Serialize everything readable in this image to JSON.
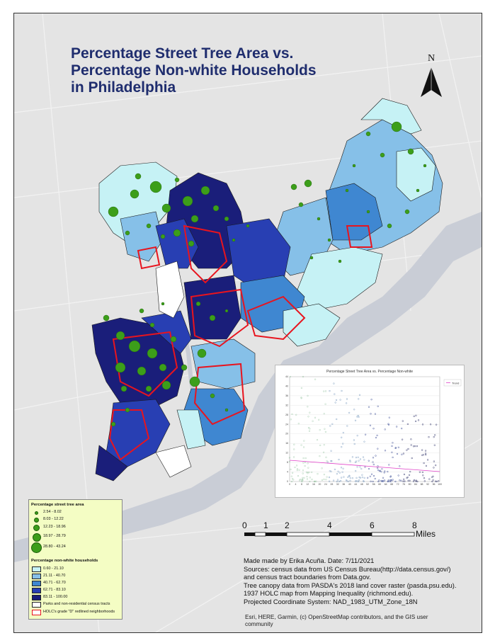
{
  "title": [
    "Percentage Street Tree Area vs.",
    "Percentage Non-white Households",
    "in Philadelphia"
  ],
  "north_arrow": {
    "letter": "N"
  },
  "colors": {
    "frame_background": "#e4e4e4",
    "water": "#c9cdd6",
    "land": "#d8d8d8",
    "tract_fill_classes": [
      "#c6f2f5",
      "#86c0e8",
      "#3f87d1",
      "#283fb3",
      "#1a1e7a"
    ],
    "tract_border": "#1a1a1a",
    "circle_fill": "#3c9e1a",
    "holc_outline": "#e8141e",
    "parks_fill": "#ffffff",
    "legend_background": "#f4fdc4",
    "title": "#1f2d6e"
  },
  "inset_chart": {
    "title": "Percentage Street Tree Area vs. Percentage Non-white",
    "legend_label": "Trend",
    "xticks": [
      "0",
      "4",
      "8",
      "12",
      "16",
      "20",
      "24",
      "28",
      "32",
      "36",
      "40",
      "44",
      "48",
      "52",
      "56",
      "60",
      "64",
      "68",
      "72",
      "76",
      "80",
      "84",
      "88",
      "92",
      "96",
      "100"
    ],
    "yticks": [
      "0",
      "4",
      "8",
      "12",
      "16",
      "20",
      "24",
      "28",
      "32",
      "36",
      "40",
      "44"
    ]
  },
  "legend": {
    "tree_area_title": "Percentage street tree area",
    "tree_area_classes": [
      "2.54 - 8.02",
      "8.03 - 12.22",
      "12.23 - 18.96",
      "18.97 - 28.79",
      "28.80 - 43.24"
    ],
    "nonwhite_title": "Percentage non-white households",
    "nonwhite_classes": [
      "0.60 - 21.10",
      "21.11 - 40.70",
      "40.71 - 62.70",
      "62.71 - 83.10",
      "83.11 - 100.00"
    ],
    "parks_label": "Parks and non-residential census tracts",
    "holc_label": "HOLC's grade \"D\" redlined neighborhoods"
  },
  "scale_bar": {
    "labels": [
      "0",
      "1",
      "2",
      "4",
      "6",
      "8"
    ],
    "units": "Miles"
  },
  "credits": [
    "Made made by Erika Acuña. Date: 7/11/2021",
    "Sources: census data from US Census Bureau(http://data.census.gov/)",
    "and census tract boundaries from Data.gov.",
    "Tree canopy data from PASDA's 2018 land cover raster (pasda.psu.edu).",
    "1937 HOLC map from Mapping Inequality (richmond.edu).",
    "Projected Coordinate System: NAD_1983_UTM_Zone_18N"
  ],
  "basemap_credit": "Esri, HERE, Garmin, (c) OpenStreetMap contributors, and the GIS user community"
}
